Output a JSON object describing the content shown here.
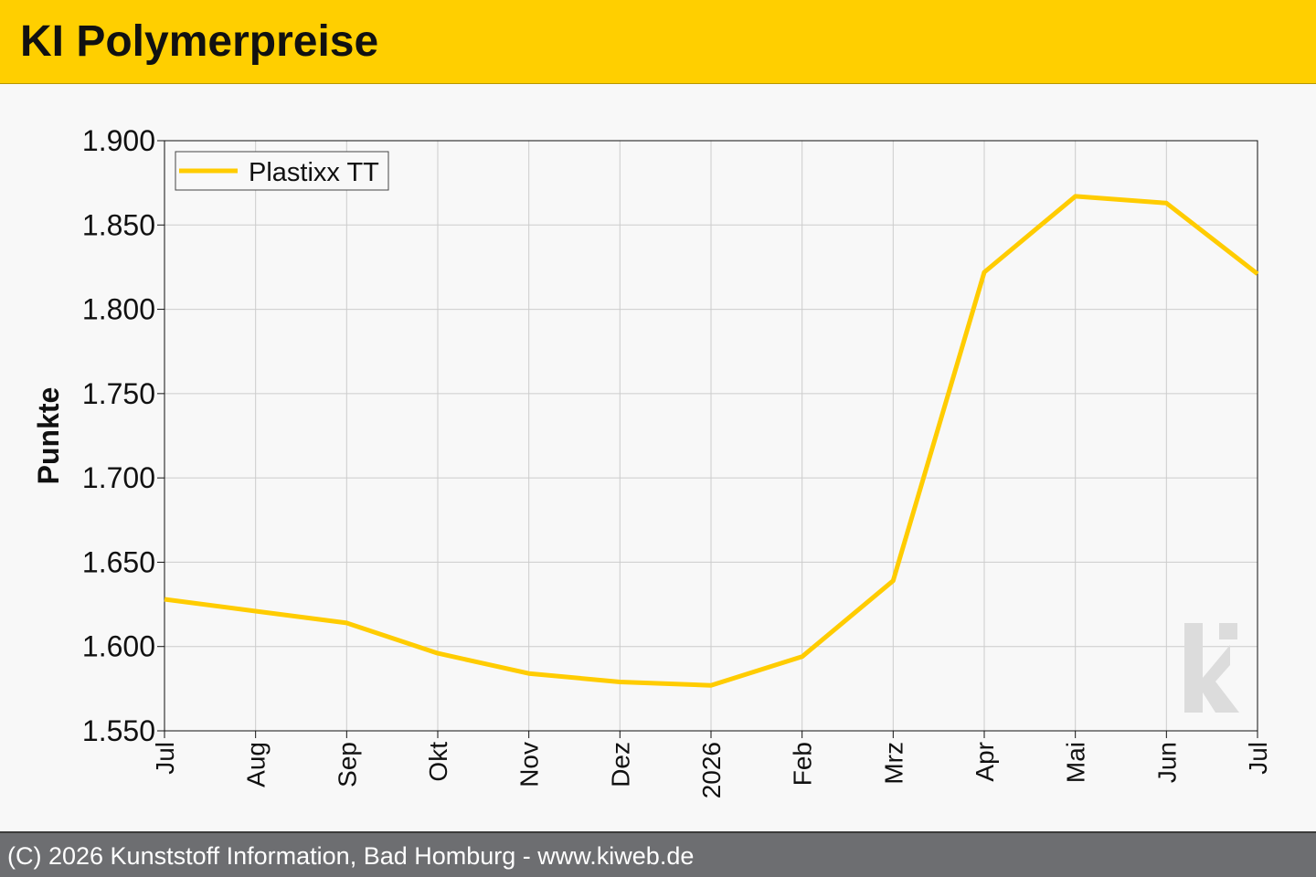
{
  "header": {
    "title": "KI Polymerpreise"
  },
  "footer": {
    "text": "(C) 2026 Kunststoff Information, Bad Homburg - www.kiweb.de"
  },
  "colors": {
    "header_bg": "#ffcf00",
    "line": "#ffcc00",
    "footer_bg": "#6d6e71",
    "plot_bg": "#f8f8f8",
    "grid": "#cccccc",
    "watermark": "#dcdcdc"
  },
  "watermark_icon": "ki-logo",
  "chart_data": {
    "type": "line",
    "title": "",
    "xlabel": "",
    "ylabel": "Punkte",
    "categories": [
      "Jul",
      "Aug",
      "Sep",
      "Okt",
      "Nov",
      "Dez",
      "2026",
      "Feb",
      "Mrz",
      "Apr",
      "Mai",
      "Jun",
      "Jul"
    ],
    "ylim": [
      1550,
      1900
    ],
    "yticks": [
      1550,
      1600,
      1650,
      1700,
      1750,
      1800,
      1850,
      1900
    ],
    "ytick_labels": [
      "1.550",
      "1.600",
      "1.650",
      "1.700",
      "1.750",
      "1.800",
      "1.850",
      "1.900"
    ],
    "grid": true,
    "legend_position": "top-left",
    "series": [
      {
        "name": "Plastixx TT",
        "values": [
          1628,
          1621,
          1614,
          1596,
          1584,
          1579,
          1577,
          1594,
          1639,
          1822,
          1867,
          1863,
          1821
        ]
      }
    ]
  }
}
